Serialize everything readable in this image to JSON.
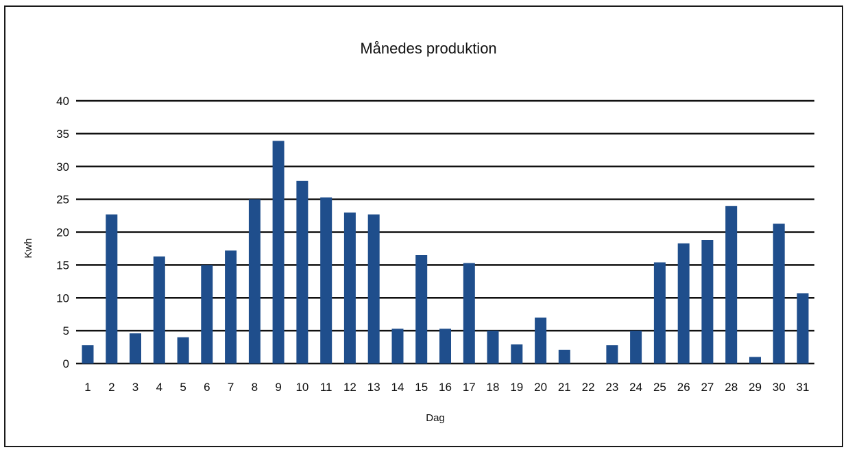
{
  "chart_data": {
    "type": "bar",
    "title": "Månedes produktion",
    "xlabel": "Dag",
    "ylabel": "Kwh",
    "categories": [
      "1",
      "2",
      "3",
      "4",
      "5",
      "6",
      "7",
      "8",
      "9",
      "10",
      "11",
      "12",
      "13",
      "14",
      "15",
      "16",
      "17",
      "18",
      "19",
      "20",
      "21",
      "22",
      "23",
      "24",
      "25",
      "26",
      "27",
      "28",
      "29",
      "30",
      "31"
    ],
    "values": [
      2.8,
      22.7,
      4.6,
      16.3,
      4.0,
      15.0,
      17.2,
      25.0,
      33.9,
      27.8,
      25.3,
      23.0,
      22.7,
      5.3,
      16.5,
      5.3,
      15.3,
      5.0,
      2.9,
      7.0,
      2.1,
      0,
      2.8,
      5.0,
      15.4,
      18.3,
      18.8,
      24.0,
      1.0,
      21.3,
      10.7
    ],
    "ylim": [
      0,
      40
    ],
    "yticks": [
      0,
      5,
      10,
      15,
      20,
      25,
      30,
      35,
      40
    ],
    "grid": true,
    "legend": "none",
    "bar_color": "#1f4e8c"
  }
}
